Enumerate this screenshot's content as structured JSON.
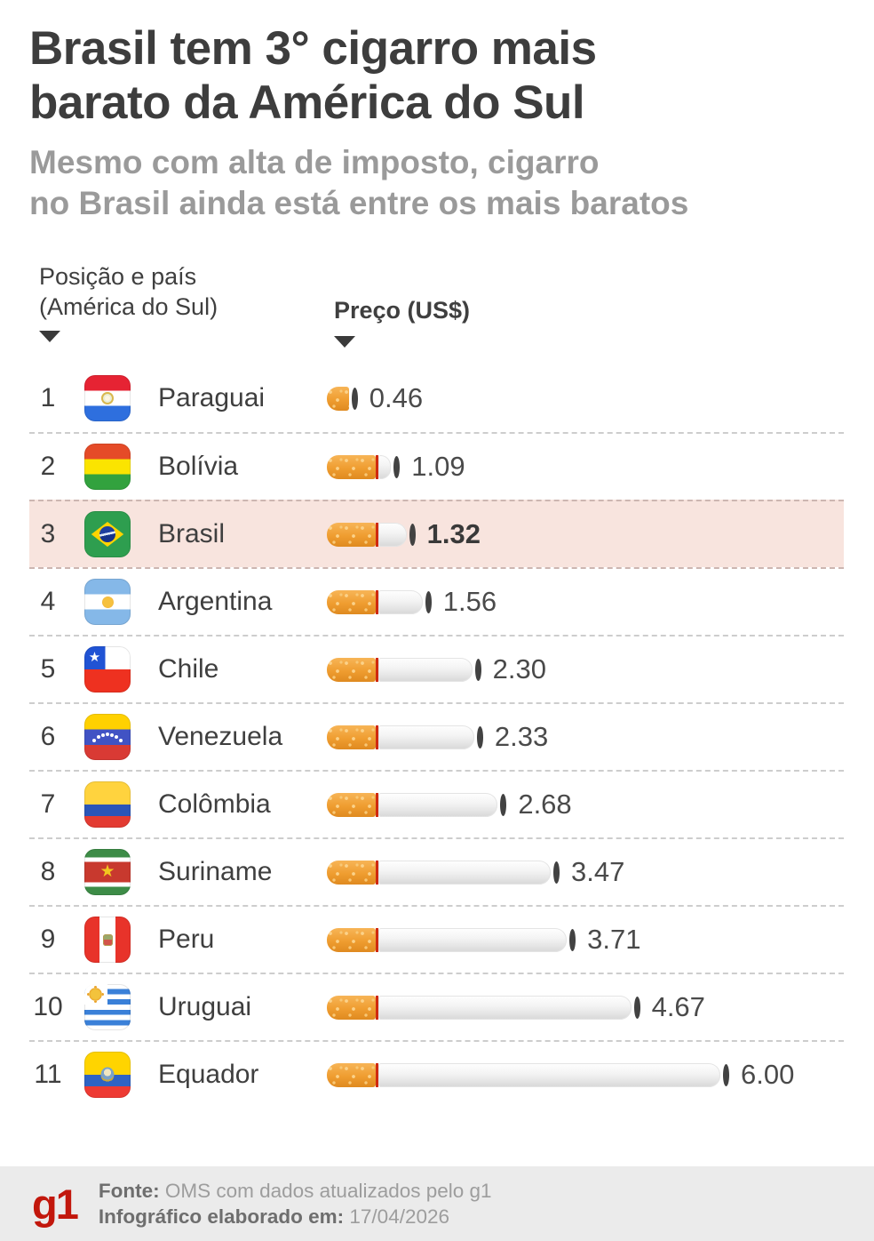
{
  "title": {
    "line1": "Brasil tem 3° cigarro mais",
    "line2": "barato da América do Sul"
  },
  "subtitle": {
    "line1": "Mesmo com alta de imposto, cigarro",
    "line2": "no Brasil ainda está entre os mais baratos"
  },
  "table": {
    "col1_header_line1": "Posição e país",
    "col1_header_line2": "(América do Sul)",
    "col2_header": "Preço (US$)"
  },
  "rows": [
    {
      "rank": "1",
      "country": "Paraguai",
      "flag": "paraguay",
      "price": 0.46,
      "price_label": "0.46",
      "highlight": false
    },
    {
      "rank": "2",
      "country": "Bolívia",
      "flag": "bolivia",
      "price": 1.09,
      "price_label": "1.09",
      "highlight": false
    },
    {
      "rank": "3",
      "country": "Brasil",
      "flag": "brazil",
      "price": 1.32,
      "price_label": "1.32",
      "highlight": true
    },
    {
      "rank": "4",
      "country": "Argentina",
      "flag": "argentina",
      "price": 1.56,
      "price_label": "1.56",
      "highlight": false
    },
    {
      "rank": "5",
      "country": "Chile",
      "flag": "chile",
      "price": 2.3,
      "price_label": "2.30",
      "highlight": false
    },
    {
      "rank": "6",
      "country": "Venezuela",
      "flag": "venezuela",
      "price": 2.33,
      "price_label": "2.33",
      "highlight": false
    },
    {
      "rank": "7",
      "country": "Colômbia",
      "flag": "colombia",
      "price": 2.68,
      "price_label": "2.68",
      "highlight": false
    },
    {
      "rank": "8",
      "country": "Suriname",
      "flag": "suriname",
      "price": 3.47,
      "price_label": "3.47",
      "highlight": false
    },
    {
      "rank": "9",
      "country": "Peru",
      "flag": "peru",
      "price": 3.71,
      "price_label": "3.71",
      "highlight": false
    },
    {
      "rank": "10",
      "country": "Uruguai",
      "flag": "uruguay",
      "price": 4.67,
      "price_label": "4.67",
      "highlight": false
    },
    {
      "rank": "11",
      "country": "Equador",
      "flag": "ecuador",
      "price": 6.0,
      "price_label": "6.00",
      "highlight": false
    }
  ],
  "chart_data": {
    "type": "bar",
    "orientation": "horizontal",
    "title": "Brasil tem 3° cigarro mais barato da América do Sul",
    "subtitle": "Mesmo com alta de imposto, cigarro no Brasil ainda está entre os mais baratos",
    "categories": [
      "Paraguai",
      "Bolívia",
      "Brasil",
      "Argentina",
      "Chile",
      "Venezuela",
      "Colômbia",
      "Suriname",
      "Peru",
      "Uruguai",
      "Equador"
    ],
    "values": [
      0.46,
      1.09,
      1.32,
      1.56,
      2.3,
      2.33,
      2.68,
      3.47,
      3.71,
      4.67,
      6.0
    ],
    "xlabel": "Preço (US$)",
    "ylabel": "Posição e país (América do Sul)",
    "xlim": [
      0,
      6.5
    ],
    "highlight_category": "Brasil",
    "legend": false,
    "grid": false
  },
  "footer": {
    "logo": "g1",
    "source_label": "Fonte:",
    "source_value": " OMS com dados atualizados pelo g1",
    "date_label": "Infográfico elaborado em:",
    "date_value": " 17/04/2026"
  },
  "colors": {
    "title": "#3d3d3d",
    "subtitle": "#9a9a9a",
    "highlight_row_bg": "#f8e4de",
    "dashed_separator": "#cdcdcd",
    "cigarette_filter": "#f0a238",
    "cigarette_band": "#cf2a10",
    "cigarette_tip": "#424242",
    "footer_bg": "#ebebeb",
    "g1_red": "#c2170c"
  }
}
